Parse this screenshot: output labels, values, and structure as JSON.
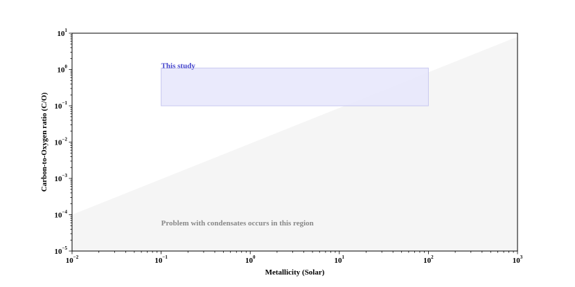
{
  "chart_data": {
    "type": "area",
    "title": "",
    "xlabel": "Metallicity (Solar)",
    "ylabel": "Carbon-to-Oxygen ratio (C/O)",
    "xscale": "log",
    "yscale": "log",
    "xlim": [
      0.01,
      1000
    ],
    "ylim": [
      1e-05,
      10
    ],
    "x_ticks": [
      {
        "base": "10",
        "exp": "−2",
        "value": 0.01
      },
      {
        "base": "10",
        "exp": "−1",
        "value": 0.1
      },
      {
        "base": "10",
        "exp": "0",
        "value": 1
      },
      {
        "base": "10",
        "exp": "1",
        "value": 10
      },
      {
        "base": "10",
        "exp": "2",
        "value": 100
      },
      {
        "base": "10",
        "exp": "3",
        "value": 1000
      }
    ],
    "y_ticks": [
      {
        "base": "10",
        "exp": "−5",
        "value": 1e-05
      },
      {
        "base": "10",
        "exp": "−4",
        "value": 0.0001
      },
      {
        "base": "10",
        "exp": "−3",
        "value": 0.001
      },
      {
        "base": "10",
        "exp": "−2",
        "value": 0.01
      },
      {
        "base": "10",
        "exp": "−1",
        "value": 0.1
      },
      {
        "base": "10",
        "exp": "0",
        "value": 1
      },
      {
        "base": "10",
        "exp": "1",
        "value": 10
      }
    ],
    "grid": false,
    "regions": [
      {
        "name": "problem-region",
        "label": "Problem with condensates occurs in this region",
        "color": "#f5f5f5",
        "label_color": "#888888",
        "boundary": [
          {
            "x": 0.01,
            "y": 0.0001
          },
          {
            "x": 1000,
            "y": 8
          }
        ],
        "fill_below_boundary": true,
        "label_anchor": {
          "x": 0.1,
          "y": 6e-05
        }
      },
      {
        "name": "this-study",
        "label": "This study",
        "color": "#e6e6fb",
        "edge_color": "#c8c8f0",
        "label_color": "#4444cc",
        "x_range": [
          0.1,
          100
        ],
        "y_range": [
          0.1,
          1.1
        ],
        "label_anchor": {
          "x": 0.1,
          "y": 1.3
        }
      }
    ]
  }
}
